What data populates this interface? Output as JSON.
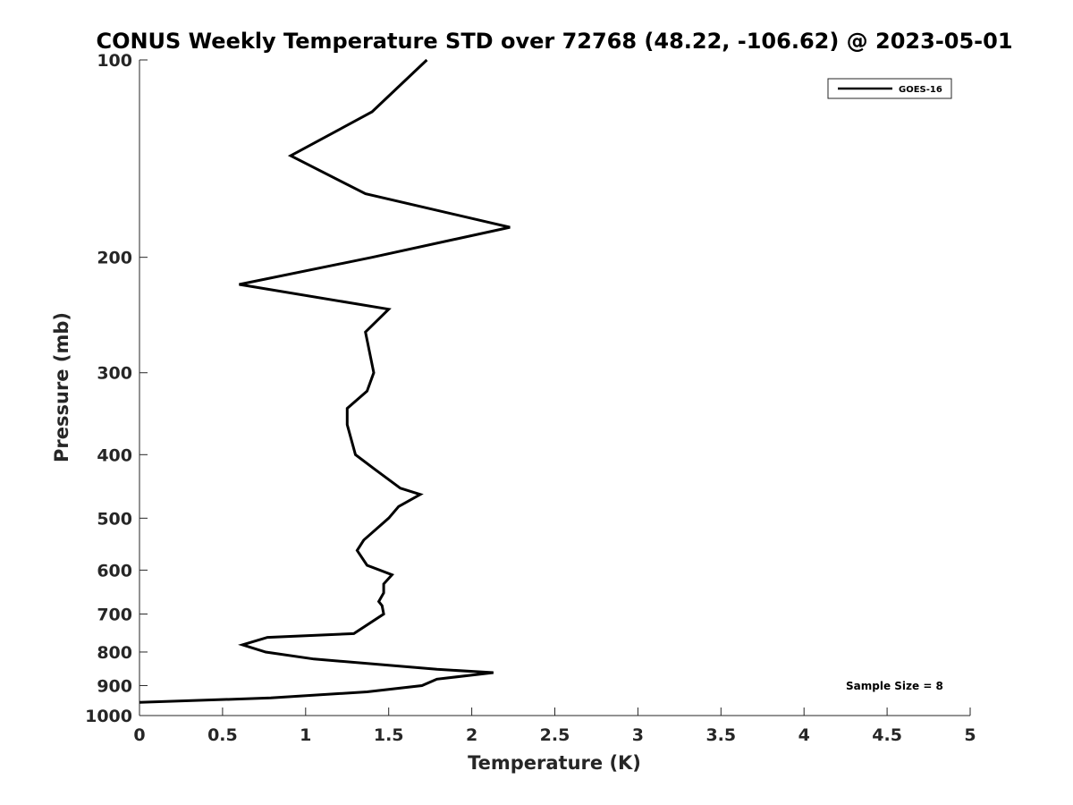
{
  "chart_data": {
    "type": "line",
    "title": "CONUS Weekly Temperature STD over 72768 (48.22, -106.62) @ 2023-05-01",
    "xlabel": "Temperature (K)",
    "ylabel": "Pressure (mb)",
    "xlim": [
      0,
      5
    ],
    "ylim": [
      100,
      1000
    ],
    "y_scale": "log",
    "y_reversed": true,
    "xticks": [
      0,
      0.5,
      1,
      1.5,
      2,
      2.5,
      3,
      3.5,
      4,
      4.5,
      5
    ],
    "xtick_labels": [
      "0",
      "0.5",
      "1",
      "1.5",
      "2",
      "2.5",
      "3",
      "3.5",
      "4",
      "4.5",
      "5"
    ],
    "yticks": [
      100,
      200,
      300,
      400,
      500,
      600,
      700,
      800,
      900,
      1000
    ],
    "ytick_labels": [
      "100",
      "200",
      "300",
      "400",
      "500",
      "600",
      "700",
      "800",
      "900",
      "1000"
    ],
    "grid": false,
    "legend_position": "top-right",
    "annotation": "Sample Size = 8",
    "series": [
      {
        "name": "GOES-16",
        "color": "#000000",
        "points": [
          [
            1.73,
            100
          ],
          [
            1.4,
            120
          ],
          [
            0.91,
            140
          ],
          [
            1.36,
            160
          ],
          [
            2.23,
            180
          ],
          [
            1.4,
            200
          ],
          [
            0.6,
            220
          ],
          [
            1.5,
            240
          ],
          [
            1.36,
            260
          ],
          [
            1.41,
            300
          ],
          [
            1.37,
            320
          ],
          [
            1.25,
            340
          ],
          [
            1.25,
            360
          ],
          [
            1.3,
            400
          ],
          [
            1.41,
            420
          ],
          [
            1.57,
            450
          ],
          [
            1.69,
            460
          ],
          [
            1.56,
            480
          ],
          [
            1.5,
            500
          ],
          [
            1.35,
            540
          ],
          [
            1.31,
            560
          ],
          [
            1.37,
            590
          ],
          [
            1.52,
            610
          ],
          [
            1.47,
            630
          ],
          [
            1.47,
            650
          ],
          [
            1.44,
            670
          ],
          [
            1.46,
            680
          ],
          [
            1.47,
            700
          ],
          [
            1.29,
            750
          ],
          [
            0.77,
            760
          ],
          [
            0.62,
            780
          ],
          [
            0.76,
            800
          ],
          [
            1.05,
            820
          ],
          [
            1.79,
            850
          ],
          [
            2.13,
            860
          ],
          [
            1.79,
            880
          ],
          [
            1.7,
            900
          ],
          [
            1.37,
            920
          ],
          [
            0.79,
            940
          ],
          [
            0.0,
            955
          ]
        ]
      }
    ]
  }
}
